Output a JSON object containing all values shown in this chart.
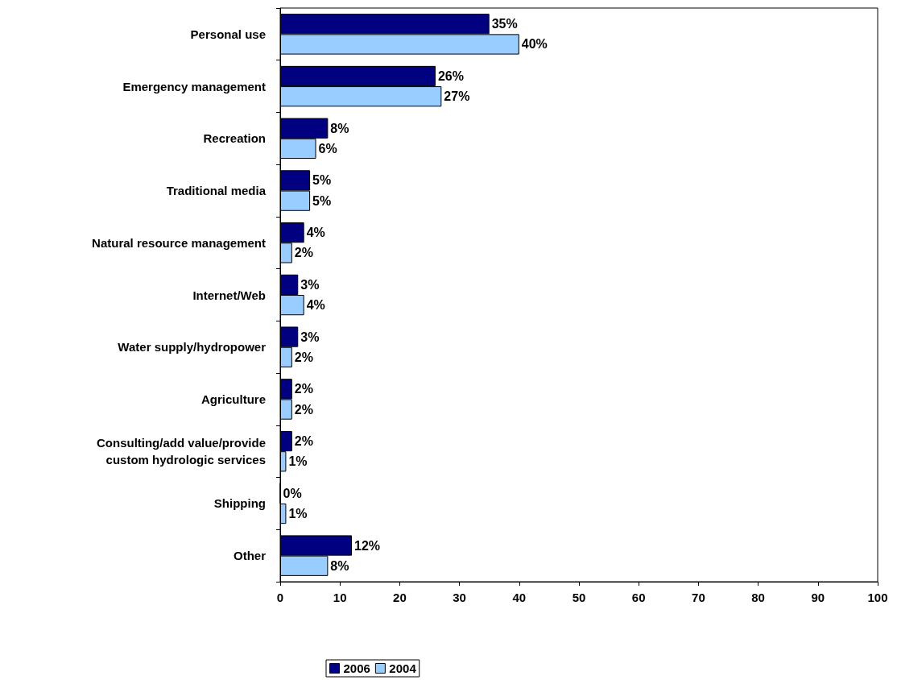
{
  "chart_data": {
    "type": "bar",
    "orientation": "horizontal",
    "categories": [
      "Personal use",
      "Emergency management",
      "Recreation",
      "Traditional media",
      "Natural resource management",
      "Internet/Web",
      "Water supply/hydropower",
      "Agriculture",
      "Consulting/add value/provide\ncustom hydrologic services",
      "Shipping",
      "Other"
    ],
    "series": [
      {
        "name": "2006",
        "color": "#000080",
        "values": [
          35,
          26,
          8,
          5,
          4,
          3,
          3,
          2,
          2,
          0,
          12
        ],
        "value_labels": [
          "35%",
          "26%",
          "8%",
          "5%",
          "4%",
          "3%",
          "3%",
          "2%",
          "2%",
          "0%",
          "12%"
        ]
      },
      {
        "name": "2004",
        "color": "#99ccff",
        "values": [
          40,
          27,
          6,
          5,
          2,
          4,
          2,
          2,
          1,
          1,
          8
        ],
        "value_labels": [
          "40%",
          "27%",
          "6%",
          "5%",
          "2%",
          "4%",
          "2%",
          "2%",
          "1%",
          "1%",
          "8%"
        ]
      }
    ],
    "xlim": [
      0,
      100
    ],
    "xticks": [
      0,
      10,
      20,
      30,
      40,
      50,
      60,
      70,
      80,
      90,
      100
    ],
    "grid": false,
    "legend": "bottom"
  }
}
